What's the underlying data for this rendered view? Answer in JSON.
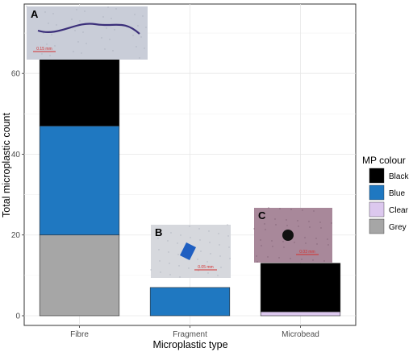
{
  "chart_data": {
    "type": "bar",
    "stacked": true,
    "categories": [
      "Fibre",
      "Fragment",
      "Microbead"
    ],
    "series": [
      {
        "name": "Grey",
        "color": "#a6a6a6",
        "values": [
          20,
          0,
          0
        ]
      },
      {
        "name": "Clear",
        "color": "#dcc8ee",
        "values": [
          0,
          0,
          1
        ]
      },
      {
        "name": "Blue",
        "color": "#1f78c1",
        "values": [
          27,
          7,
          0
        ]
      },
      {
        "name": "Black",
        "color": "#000000",
        "values": [
          18,
          0,
          12
        ]
      }
    ],
    "xlabel": "Microplastic type",
    "ylabel": "Total microplastic count",
    "ylim": [
      0,
      75
    ],
    "yticks": [
      0,
      20,
      40,
      60
    ],
    "grid": true,
    "legend": {
      "title": "MP colour",
      "position": "right",
      "entries": [
        "Black",
        "Blue",
        "Clear",
        "Grey"
      ]
    },
    "insets": [
      {
        "letter": "A",
        "category": "Fibre",
        "subject": "fibre",
        "scale": "0.15 mm"
      },
      {
        "letter": "B",
        "category": "Fragment",
        "subject": "fragment",
        "scale": "0.05 mm"
      },
      {
        "letter": "C",
        "category": "Microbead",
        "subject": "microbead",
        "scale": "0.03 mm"
      }
    ]
  }
}
